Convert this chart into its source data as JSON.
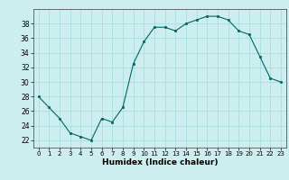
{
  "x": [
    0,
    1,
    2,
    3,
    4,
    5,
    6,
    7,
    8,
    9,
    10,
    11,
    12,
    13,
    14,
    15,
    16,
    17,
    18,
    19,
    20,
    21,
    22,
    23
  ],
  "y": [
    28,
    26.5,
    25,
    23,
    22.5,
    22,
    25,
    24.5,
    26.5,
    32.5,
    35.5,
    37.5,
    37.5,
    37,
    38,
    38.5,
    39,
    39,
    38.5,
    37,
    36.5,
    33.5,
    30.5,
    30
  ],
  "line_color": "#006666",
  "marker_color": "#006666",
  "bg_color": "#cceeee",
  "grid_color": "#aadddd",
  "xlabel": "Humidex (Indice chaleur)",
  "ylim": [
    21,
    40
  ],
  "xlim": [
    -0.5,
    23.5
  ],
  "yticks": [
    22,
    24,
    26,
    28,
    30,
    32,
    34,
    36,
    38
  ],
  "xticks": [
    0,
    1,
    2,
    3,
    4,
    5,
    6,
    7,
    8,
    9,
    10,
    11,
    12,
    13,
    14,
    15,
    16,
    17,
    18,
    19,
    20,
    21,
    22,
    23
  ]
}
